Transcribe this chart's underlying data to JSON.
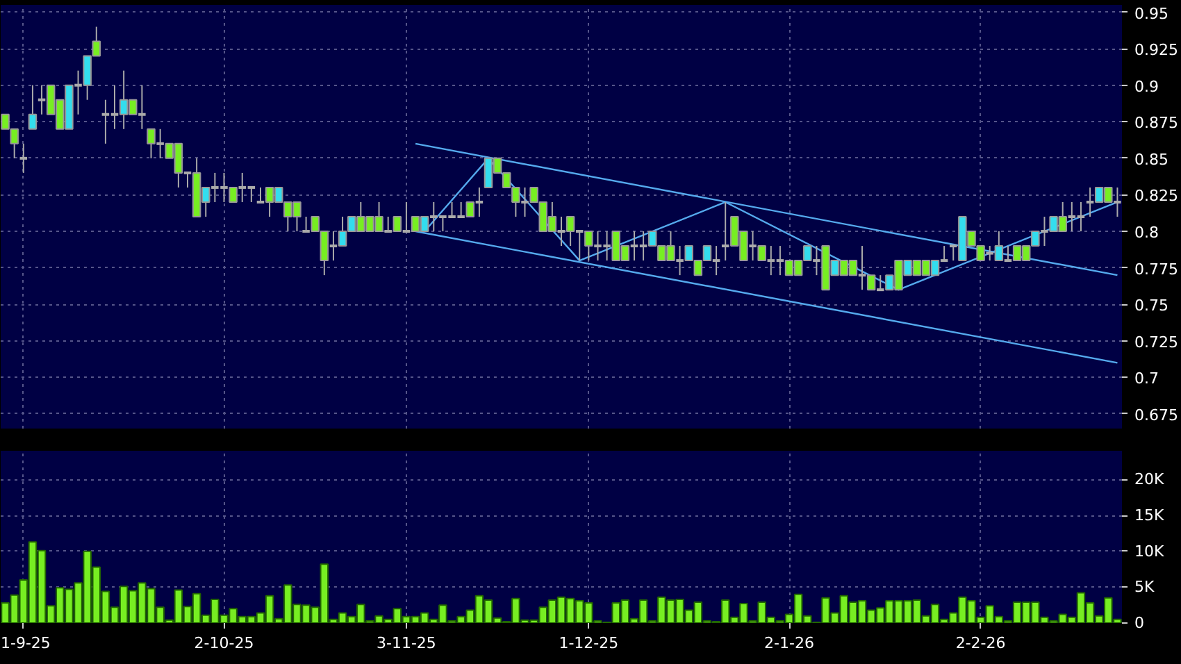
{
  "chart_data": [
    {
      "type": "candlestick",
      "tick_labels": "y",
      "grid": true,
      "categories": [
        null,
        null,
        null,
        null,
        null,
        null,
        null,
        null,
        null,
        null,
        null,
        null,
        null,
        null,
        null,
        null,
        null,
        null,
        null,
        null,
        null,
        null,
        null,
        null,
        null,
        null,
        null,
        null,
        null,
        null,
        null,
        null,
        null,
        null,
        null,
        null,
        null,
        null,
        null,
        null,
        null,
        null,
        null,
        null,
        null,
        null,
        null,
        null,
        null,
        null,
        null,
        null,
        null,
        null,
        null,
        null,
        null,
        null,
        null,
        null,
        null,
        null,
        null,
        null,
        null,
        null,
        null,
        null,
        null,
        null,
        null,
        null,
        null,
        null,
        null,
        null,
        null,
        null,
        null,
        null,
        null,
        null,
        null,
        null,
        null,
        null,
        null,
        null,
        null,
        null,
        null,
        null,
        null,
        null,
        null,
        null,
        null,
        null,
        null,
        null,
        null,
        null,
        null,
        null,
        null,
        null,
        null,
        null,
        null,
        null,
        null,
        null,
        null,
        null,
        null,
        null,
        null,
        null,
        null,
        null,
        null,
        null,
        null
      ],
      "ylim": [
        0.665,
        0.955
      ],
      "yticks": [
        0.675,
        0.7,
        0.725,
        0.75,
        0.775,
        0.8,
        0.825,
        0.85,
        0.875,
        0.9,
        0.925,
        0.95
      ],
      "ohlc": [
        [
          0.88,
          0.88,
          0.87,
          0.87
        ],
        [
          0.87,
          0.87,
          0.85,
          0.86
        ],
        [
          0.85,
          0.86,
          0.84,
          0.85
        ],
        [
          0.87,
          0.9,
          0.87,
          0.88
        ],
        [
          0.89,
          0.9,
          0.88,
          0.89
        ],
        [
          0.9,
          0.9,
          0.88,
          0.88
        ],
        [
          0.89,
          0.89,
          0.87,
          0.87
        ],
        [
          0.87,
          0.9,
          0.87,
          0.9
        ],
        [
          0.9,
          0.91,
          0.88,
          0.9
        ],
        [
          0.9,
          0.92,
          0.89,
          0.92
        ],
        [
          0.93,
          0.94,
          0.92,
          0.92
        ],
        [
          0.88,
          0.89,
          0.86,
          0.88
        ],
        [
          0.88,
          0.9,
          0.87,
          0.88
        ],
        [
          0.88,
          0.91,
          0.87,
          0.89
        ],
        [
          0.89,
          0.89,
          0.88,
          0.88
        ],
        [
          0.88,
          0.9,
          0.87,
          0.88
        ],
        [
          0.87,
          0.87,
          0.85,
          0.86
        ],
        [
          0.86,
          0.87,
          0.85,
          0.86
        ],
        [
          0.86,
          0.86,
          0.85,
          0.85
        ],
        [
          0.86,
          0.86,
          0.83,
          0.84
        ],
        [
          0.84,
          0.84,
          0.83,
          0.84
        ],
        [
          0.84,
          0.85,
          0.81,
          0.81
        ],
        [
          0.82,
          0.83,
          0.81,
          0.83
        ],
        [
          0.83,
          0.84,
          0.82,
          0.83
        ],
        [
          0.83,
          0.84,
          0.82,
          0.83
        ],
        [
          0.83,
          0.83,
          0.82,
          0.82
        ],
        [
          0.83,
          0.84,
          0.82,
          0.83
        ],
        [
          0.83,
          0.83,
          0.82,
          0.83
        ],
        [
          0.82,
          0.83,
          0.82,
          0.82
        ],
        [
          0.83,
          0.83,
          0.81,
          0.82
        ],
        [
          0.82,
          0.83,
          0.82,
          0.83
        ],
        [
          0.82,
          0.82,
          0.8,
          0.81
        ],
        [
          0.82,
          0.82,
          0.8,
          0.81
        ],
        [
          0.8,
          0.81,
          0.8,
          0.8
        ],
        [
          0.81,
          0.81,
          0.8,
          0.8
        ],
        [
          0.8,
          0.8,
          0.77,
          0.78
        ],
        [
          0.79,
          0.8,
          0.78,
          0.79
        ],
        [
          0.79,
          0.81,
          0.79,
          0.8
        ],
        [
          0.8,
          0.81,
          0.8,
          0.81
        ],
        [
          0.81,
          0.82,
          0.8,
          0.8
        ],
        [
          0.81,
          0.81,
          0.8,
          0.8
        ],
        [
          0.81,
          0.82,
          0.8,
          0.8
        ],
        [
          0.8,
          0.81,
          0.8,
          0.8
        ],
        [
          0.81,
          0.81,
          0.8,
          0.8
        ],
        [
          0.8,
          0.82,
          0.8,
          0.8
        ],
        [
          0.81,
          0.81,
          0.8,
          0.8
        ],
        [
          0.8,
          0.81,
          0.8,
          0.81
        ],
        [
          0.81,
          0.82,
          0.8,
          0.81
        ],
        [
          0.81,
          0.81,
          0.8,
          0.81
        ],
        [
          0.81,
          0.82,
          0.81,
          0.81
        ],
        [
          0.81,
          0.82,
          0.81,
          0.81
        ],
        [
          0.82,
          0.82,
          0.81,
          0.81
        ],
        [
          0.82,
          0.83,
          0.81,
          0.82
        ],
        [
          0.83,
          0.85,
          0.83,
          0.85
        ],
        [
          0.85,
          0.85,
          0.84,
          0.84
        ],
        [
          0.84,
          0.84,
          0.83,
          0.83
        ],
        [
          0.83,
          0.83,
          0.81,
          0.82
        ],
        [
          0.82,
          0.83,
          0.81,
          0.82
        ],
        [
          0.83,
          0.83,
          0.82,
          0.82
        ],
        [
          0.82,
          0.82,
          0.8,
          0.8
        ],
        [
          0.81,
          0.82,
          0.8,
          0.8
        ],
        [
          0.8,
          0.81,
          0.79,
          0.8
        ],
        [
          0.81,
          0.81,
          0.79,
          0.8
        ],
        [
          0.8,
          0.8,
          0.78,
          0.8
        ],
        [
          0.8,
          0.8,
          0.78,
          0.79
        ],
        [
          0.79,
          0.8,
          0.78,
          0.79
        ],
        [
          0.79,
          0.8,
          0.78,
          0.79
        ],
        [
          0.8,
          0.8,
          0.78,
          0.78
        ],
        [
          0.79,
          0.79,
          0.78,
          0.78
        ],
        [
          0.79,
          0.8,
          0.78,
          0.79
        ],
        [
          0.79,
          0.8,
          0.78,
          0.79
        ],
        [
          0.79,
          0.8,
          0.79,
          0.8
        ],
        [
          0.79,
          0.79,
          0.78,
          0.78
        ],
        [
          0.79,
          0.8,
          0.78,
          0.78
        ],
        [
          0.78,
          0.79,
          0.77,
          0.78
        ],
        [
          0.78,
          0.79,
          0.78,
          0.79
        ],
        [
          0.78,
          0.78,
          0.77,
          0.77
        ],
        [
          0.78,
          0.79,
          0.78,
          0.79
        ],
        [
          0.78,
          0.79,
          0.77,
          0.78
        ],
        [
          0.79,
          0.82,
          0.78,
          0.79
        ],
        [
          0.81,
          0.81,
          0.79,
          0.79
        ],
        [
          0.8,
          0.8,
          0.78,
          0.78
        ],
        [
          0.79,
          0.8,
          0.78,
          0.79
        ],
        [
          0.79,
          0.79,
          0.78,
          0.78
        ],
        [
          0.78,
          0.79,
          0.77,
          0.78
        ],
        [
          0.78,
          0.79,
          0.77,
          0.78
        ],
        [
          0.78,
          0.78,
          0.77,
          0.77
        ],
        [
          0.78,
          0.78,
          0.77,
          0.77
        ],
        [
          0.78,
          0.79,
          0.78,
          0.79
        ],
        [
          0.78,
          0.79,
          0.77,
          0.78
        ],
        [
          0.79,
          0.79,
          0.76,
          0.76
        ],
        [
          0.77,
          0.78,
          0.77,
          0.78
        ],
        [
          0.78,
          0.78,
          0.77,
          0.77
        ],
        [
          0.78,
          0.78,
          0.77,
          0.77
        ],
        [
          0.77,
          0.79,
          0.76,
          0.77
        ],
        [
          0.77,
          0.77,
          0.76,
          0.76
        ],
        [
          0.76,
          0.77,
          0.76,
          0.76
        ],
        [
          0.76,
          0.77,
          0.76,
          0.77
        ],
        [
          0.78,
          0.78,
          0.76,
          0.76
        ],
        [
          0.77,
          0.78,
          0.77,
          0.78
        ],
        [
          0.78,
          0.78,
          0.77,
          0.77
        ],
        [
          0.78,
          0.78,
          0.77,
          0.77
        ],
        [
          0.77,
          0.78,
          0.77,
          0.78
        ],
        [
          0.78,
          0.79,
          0.78,
          0.78
        ],
        [
          0.79,
          0.79,
          0.78,
          0.79
        ],
        [
          0.78,
          0.81,
          0.78,
          0.81
        ],
        [
          0.8,
          0.8,
          0.79,
          0.79
        ],
        [
          0.79,
          0.79,
          0.78,
          0.78
        ],
        [
          0.785,
          0.79,
          0.78,
          0.785
        ],
        [
          0.78,
          0.8,
          0.78,
          0.79
        ],
        [
          0.78,
          0.79,
          0.78,
          0.78
        ],
        [
          0.79,
          0.79,
          0.78,
          0.78
        ],
        [
          0.79,
          0.79,
          0.78,
          0.78
        ],
        [
          0.79,
          0.8,
          0.79,
          0.8
        ],
        [
          0.8,
          0.81,
          0.79,
          0.8
        ],
        [
          0.8,
          0.81,
          0.8,
          0.81
        ],
        [
          0.81,
          0.82,
          0.8,
          0.8
        ],
        [
          0.81,
          0.82,
          0.8,
          0.81
        ],
        [
          0.81,
          0.82,
          0.8,
          0.81
        ],
        [
          0.82,
          0.83,
          0.81,
          0.82
        ],
        [
          0.82,
          0.83,
          0.82,
          0.83
        ],
        [
          0.83,
          0.83,
          0.82,
          0.82
        ],
        [
          0.82,
          0.83,
          0.81,
          0.82
        ]
      ],
      "colors": [
        "#77ee22",
        "#77ee22",
        "#aaaaaa",
        "#33ddee",
        "#aaaaaa",
        "#77ee22",
        "#77ee22",
        "#33ddee",
        "#aaaaaa",
        "#33ddee",
        "#77ee22",
        "#aaaaaa",
        "#aaaaaa",
        "#33ddee",
        "#77ee22",
        "#aaaaaa",
        "#77ee22",
        "#aaaaaa",
        "#77ee22",
        "#77ee22",
        "#aaaaaa",
        "#77ee22",
        "#33ddee",
        "#aaaaaa",
        "#aaaaaa",
        "#77ee22",
        "#aaaaaa",
        "#aaaaaa",
        "#aaaaaa",
        "#77ee22",
        "#33ddee",
        "#77ee22",
        "#77ee22",
        "#aaaaaa",
        "#77ee22",
        "#77ee22",
        "#aaaaaa",
        "#33ddee",
        "#33ddee",
        "#77ee22",
        "#77ee22",
        "#77ee22",
        "#aaaaaa",
        "#77ee22",
        "#aaaaaa",
        "#77ee22",
        "#33ddee",
        "#aaaaaa",
        "#aaaaaa",
        "#aaaaaa",
        "#aaaaaa",
        "#77ee22",
        "#aaaaaa",
        "#33ddee",
        "#77ee22",
        "#77ee22",
        "#77ee22",
        "#aaaaaa",
        "#77ee22",
        "#77ee22",
        "#77ee22",
        "#aaaaaa",
        "#77ee22",
        "#aaaaaa",
        "#77ee22",
        "#aaaaaa",
        "#aaaaaa",
        "#77ee22",
        "#77ee22",
        "#aaaaaa",
        "#aaaaaa",
        "#33ddee",
        "#77ee22",
        "#77ee22",
        "#aaaaaa",
        "#33ddee",
        "#77ee22",
        "#33ddee",
        "#aaaaaa",
        "#aaaaaa",
        "#77ee22",
        "#77ee22",
        "#aaaaaa",
        "#77ee22",
        "#aaaaaa",
        "#aaaaaa",
        "#77ee22",
        "#77ee22",
        "#33ddee",
        "#aaaaaa",
        "#77ee22",
        "#33ddee",
        "#77ee22",
        "#77ee22",
        "#aaaaaa",
        "#77ee22",
        "#aaaaaa",
        "#33ddee",
        "#77ee22",
        "#33ddee",
        "#77ee22",
        "#77ee22",
        "#33ddee",
        "#aaaaaa",
        "#aaaaaa",
        "#33ddee",
        "#77ee22",
        "#77ee22",
        "#aaaaaa",
        "#33ddee",
        "#aaaaaa",
        "#77ee22",
        "#77ee22",
        "#33ddee",
        "#aaaaaa",
        "#33ddee",
        "#77ee22",
        "#aaaaaa",
        "#aaaaaa",
        "#aaaaaa",
        "#33ddee",
        "#77ee22",
        "#aaaaaa"
      ],
      "series": [
        {
          "type": "line",
          "color": "#55aaee",
          "values": [
            null,
            null,
            null,
            null,
            null,
            null,
            null,
            null,
            null,
            null,
            null,
            null,
            null,
            null,
            null,
            null,
            null,
            null,
            null,
            null,
            null,
            null,
            null,
            null,
            null,
            null,
            null,
            null,
            null,
            null,
            null,
            null,
            null,
            null,
            null,
            null,
            null,
            null,
            null,
            null,
            null,
            null,
            null,
            null,
            null,
            0.86,
            null,
            null,
            null,
            null,
            null,
            null,
            null,
            null,
            null,
            null,
            null,
            null,
            null,
            null,
            null,
            null,
            null,
            null,
            null,
            null,
            null,
            null,
            null,
            null,
            null,
            null,
            null,
            null,
            null,
            null,
            null,
            null,
            null,
            null,
            null,
            null,
            null,
            null,
            null,
            null,
            null,
            null,
            null,
            null,
            null,
            null,
            null,
            null,
            null,
            null,
            null,
            null,
            null,
            null,
            null,
            null,
            null,
            null,
            null,
            null,
            null,
            null,
            null,
            null,
            null,
            null,
            null,
            null,
            null,
            null,
            null,
            null,
            null,
            null,
            null,
            null,
            0.77
          ]
        },
        {
          "type": "line",
          "color": "#55aaee",
          "values": [
            null,
            null,
            null,
            null,
            null,
            null,
            null,
            null,
            null,
            null,
            null,
            null,
            null,
            null,
            null,
            null,
            null,
            null,
            null,
            null,
            null,
            null,
            null,
            null,
            null,
            null,
            null,
            null,
            null,
            null,
            null,
            null,
            null,
            null,
            null,
            null,
            null,
            null,
            null,
            null,
            null,
            null,
            null,
            null,
            null,
            0.8,
            null,
            null,
            null,
            null,
            null,
            null,
            null,
            null,
            null,
            null,
            null,
            null,
            null,
            null,
            null,
            null,
            null,
            null,
            null,
            null,
            null,
            null,
            null,
            null,
            null,
            null,
            null,
            null,
            null,
            null,
            null,
            null,
            null,
            null,
            null,
            null,
            null,
            null,
            null,
            null,
            null,
            null,
            null,
            null,
            null,
            null,
            null,
            null,
            null,
            null,
            null,
            null,
            null,
            null,
            null,
            null,
            null,
            null,
            null,
            null,
            null,
            null,
            null,
            null,
            null,
            null,
            null,
            null,
            null,
            null,
            null,
            null,
            null,
            null,
            null,
            null,
            0.71
          ]
        },
        {
          "type": "line",
          "color": "#55aaee",
          "values": [
            null,
            null,
            null,
            null,
            null,
            null,
            null,
            null,
            null,
            null,
            null,
            null,
            null,
            null,
            null,
            null,
            null,
            null,
            null,
            null,
            null,
            null,
            null,
            null,
            null,
            null,
            null,
            null,
            null,
            null,
            null,
            null,
            null,
            null,
            null,
            null,
            null,
            null,
            null,
            null,
            null,
            null,
            null,
            null,
            null,
            null,
            0.8,
            null,
            null,
            null,
            null,
            null,
            null,
            0.85,
            null,
            null,
            null,
            null,
            null,
            null,
            null,
            null,
            null,
            0.78,
            null,
            null,
            null,
            null,
            null,
            null,
            null,
            null,
            null,
            null,
            null,
            null,
            null,
            null,
            null,
            0.82,
            null,
            null,
            null,
            null,
            null,
            null,
            null,
            null,
            null,
            null,
            null,
            null,
            null,
            null,
            null,
            null,
            null,
            null,
            0.76,
            null,
            null,
            null,
            null,
            null,
            null,
            null,
            null,
            null,
            null,
            null,
            null,
            null,
            null,
            null,
            null,
            null,
            null,
            null,
            null,
            null,
            null,
            null,
            0.82
          ]
        }
      ]
    },
    {
      "type": "bar",
      "color": "#77ee22",
      "grid": true,
      "ylim": [
        0,
        24000
      ],
      "yticks": [
        {
          "value": 0,
          "label": "0"
        },
        {
          "value": 5000,
          "label": "5K"
        },
        {
          "value": 10000,
          "label": "10K"
        },
        {
          "value": 15000,
          "label": "15K"
        },
        {
          "value": 20000,
          "label": "20K"
        }
      ],
      "categories": [
        null,
        null,
        "1-9-25",
        null,
        null,
        null,
        null,
        null,
        null,
        null,
        null,
        null,
        null,
        null,
        null,
        null,
        null,
        null,
        null,
        null,
        null,
        null,
        null,
        null,
        "2-10-25",
        null,
        null,
        null,
        null,
        null,
        null,
        null,
        null,
        null,
        null,
        null,
        null,
        null,
        null,
        null,
        null,
        null,
        null,
        null,
        "3-11-25",
        null,
        null,
        null,
        null,
        null,
        null,
        null,
        null,
        null,
        null,
        null,
        null,
        null,
        null,
        null,
        null,
        null,
        null,
        null,
        "1-12-25",
        null,
        null,
        null,
        null,
        null,
        null,
        null,
        null,
        null,
        null,
        null,
        null,
        null,
        null,
        null,
        null,
        null,
        null,
        null,
        null,
        null,
        "2-1-26",
        null,
        null,
        null,
        null,
        null,
        null,
        null,
        null,
        null,
        null,
        null,
        null,
        null,
        null,
        null,
        null,
        null,
        null,
        null,
        null,
        "2-2-26",
        null,
        null,
        null,
        null,
        null,
        null,
        null,
        null,
        null,
        null,
        null,
        null,
        null,
        null,
        null
      ],
      "values": [
        2800,
        3900,
        6000,
        11300,
        10100,
        2400,
        4900,
        4700,
        5600,
        10000,
        7800,
        4400,
        2200,
        5100,
        4500,
        5600,
        4800,
        2200,
        400,
        4600,
        2300,
        4100,
        1100,
        3300,
        1100,
        2000,
        900,
        900,
        1400,
        3800,
        600,
        5300,
        2600,
        2500,
        2200,
        8200,
        500,
        1400,
        900,
        2600,
        300,
        1000,
        500,
        2000,
        900,
        900,
        1400,
        500,
        2500,
        300,
        900,
        1800,
        3800,
        3200,
        700,
        200,
        3400,
        400,
        400,
        2200,
        3200,
        3600,
        3400,
        3100,
        2800,
        300,
        100,
        2800,
        3200,
        600,
        3200,
        300,
        3600,
        3200,
        3300,
        1800,
        2900,
        300,
        200,
        3200,
        800,
        2700,
        300,
        2900,
        800,
        300,
        1200,
        4000,
        1000,
        100,
        3500,
        1400,
        3800,
        2900,
        3100,
        1800,
        2100,
        3100,
        3100,
        3100,
        3200,
        1000,
        2600,
        500,
        1400,
        3600,
        3100,
        800,
        2400,
        900,
        300,
        2900,
        2900,
        2900,
        800,
        300,
        1200,
        800,
        4200,
        2800,
        1000,
        3500,
        500
      ]
    }
  ]
}
